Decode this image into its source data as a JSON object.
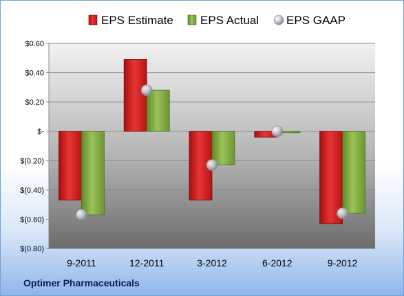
{
  "company": "Optimer Pharmaceuticals",
  "chart_data": {
    "type": "bar",
    "categories": [
      "9-2011",
      "12-2011",
      "3-2012",
      "6-2012",
      "9-2012"
    ],
    "series": [
      {
        "name": "EPS Estimate",
        "kind": "bar",
        "color": "#d42020",
        "values": [
          -0.47,
          0.49,
          -0.47,
          -0.04,
          -0.63
        ]
      },
      {
        "name": "EPS Actual",
        "kind": "bar",
        "color": "#7faa3c",
        "values": [
          -0.57,
          0.28,
          -0.23,
          -0.01,
          -0.56
        ]
      },
      {
        "name": "EPS GAAP",
        "kind": "point",
        "color": "#b8bcc4",
        "values": [
          -0.57,
          0.28,
          -0.23,
          0.0,
          -0.56
        ]
      }
    ],
    "yticks": [
      {
        "value": 0.6,
        "label": "$0.60"
      },
      {
        "value": 0.4,
        "label": "$0.40"
      },
      {
        "value": 0.2,
        "label": "$0.20"
      },
      {
        "value": 0.0,
        "label": "$-"
      },
      {
        "value": -0.2,
        "label": "$(0.20)"
      },
      {
        "value": -0.4,
        "label": "$(0.40)"
      },
      {
        "value": -0.6,
        "label": "$(0.60)"
      },
      {
        "value": -0.8,
        "label": "$(0.80)"
      }
    ],
    "ylim": [
      -0.8,
      0.6
    ],
    "grid": true,
    "legend_position": "top"
  }
}
